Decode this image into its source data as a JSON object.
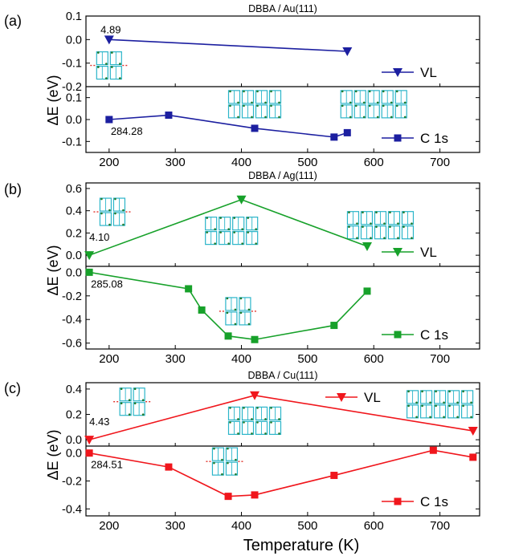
{
  "figure": {
    "x_axis_label": "Temperature (K)",
    "y_axis_label": "ΔE (eV)",
    "x_ticks": [
      200,
      300,
      400,
      500,
      600,
      700
    ]
  },
  "chart_data": [
    {
      "type": "line",
      "panel": "(a)",
      "title": "DBBA / Au(111)",
      "colors": {
        "series": "#1c1fa0",
        "molecule": "#2bb5c9"
      },
      "xlim": [
        165,
        760
      ],
      "subplots": [
        {
          "name": "VL",
          "marker": "triangle-down",
          "ylim": [
            -0.2,
            0.1
          ],
          "y_ticks": [
            "0.1",
            "0.0",
            "-0.1",
            "-0.2"
          ],
          "x": [
            200,
            560
          ],
          "y": [
            0.0,
            -0.05
          ],
          "annotation": "4.89",
          "legend": "VL",
          "legend_position": "right",
          "molecule_insets": [
            {
              "x": 200,
              "y": -0.11,
              "cols": 2,
              "rows": 2,
              "dashes": true
            }
          ]
        },
        {
          "name": "C 1s",
          "marker": "square",
          "ylim": [
            -0.15,
            0.15
          ],
          "y_ticks": [
            "0.1",
            "0.0",
            "-0.1"
          ],
          "x": [
            200,
            290,
            420,
            540,
            560
          ],
          "y": [
            0.0,
            0.02,
            -0.04,
            -0.08,
            -0.06
          ],
          "annotation": "284.28",
          "legend": "C 1s",
          "legend_position": "right",
          "molecule_insets": [
            {
              "x": 420,
              "y": 0.07,
              "cols": 4,
              "rows": 2,
              "dashes": false
            },
            {
              "x": 600,
              "y": 0.07,
              "cols": 5,
              "rows": 2,
              "dashes": false
            }
          ]
        }
      ]
    },
    {
      "type": "line",
      "panel": "(b)",
      "title": "DBBA / Ag(111)",
      "colors": {
        "series": "#17a12a",
        "molecule": "#2bb5c9"
      },
      "xlim": [
        165,
        760
      ],
      "subplots": [
        {
          "name": "VL",
          "marker": "triangle-down",
          "ylim": [
            -0.1,
            0.65
          ],
          "y_ticks": [
            "0.6",
            "0.4",
            "0.2",
            "0.0"
          ],
          "x": [
            170,
            400,
            590
          ],
          "y": [
            0.0,
            0.5,
            0.08
          ],
          "annotation": "4.10",
          "legend": "VL",
          "legend_position": "right",
          "molecule_insets": [
            {
              "x": 205,
              "y": 0.39,
              "cols": 2,
              "rows": 2,
              "dashes": true
            },
            {
              "x": 385,
              "y": 0.22,
              "cols": 4,
              "rows": 2,
              "dashes": false
            },
            {
              "x": 610,
              "y": 0.27,
              "cols": 5,
              "rows": 2,
              "dashes": false
            }
          ]
        },
        {
          "name": "C 1s",
          "marker": "square",
          "ylim": [
            -0.65,
            0.05
          ],
          "y_ticks": [
            "0.0",
            "-0.2",
            "-0.4",
            "-0.6"
          ],
          "x": [
            170,
            320,
            340,
            380,
            420,
            540,
            590
          ],
          "y": [
            0.0,
            -0.14,
            -0.32,
            -0.54,
            -0.57,
            -0.45,
            -0.16
          ],
          "annotation": "285.08",
          "legend": "C 1s",
          "legend_position": "bottom-right",
          "molecule_insets": [
            {
              "x": 395,
              "y": -0.33,
              "cols": 2,
              "rows": 2,
              "dashes": true
            }
          ]
        }
      ]
    },
    {
      "type": "line",
      "panel": "(c)",
      "title": "DBBA / Cu(111)",
      "colors": {
        "series": "#f0161c",
        "molecule": "#2bb5c9"
      },
      "xlim": [
        165,
        760
      ],
      "subplots": [
        {
          "name": "VL",
          "marker": "triangle-down",
          "ylim": [
            -0.05,
            0.45
          ],
          "y_ticks": [
            "0.4",
            "0.2",
            "0.0"
          ],
          "x": [
            170,
            420,
            750
          ],
          "y": [
            0.0,
            0.35,
            0.07
          ],
          "annotation": "4.43",
          "legend": "VL",
          "legend_position": "top-center",
          "molecule_insets": [
            {
              "x": 235,
              "y": 0.3,
              "cols": 2,
              "rows": 2,
              "dashes": true
            },
            {
              "x": 420,
              "y": 0.15,
              "cols": 4,
              "rows": 2,
              "dashes": false
            },
            {
              "x": 700,
              "y": 0.28,
              "cols": 5,
              "rows": 2,
              "dashes": false
            }
          ]
        },
        {
          "name": "C 1s",
          "marker": "square",
          "ylim": [
            -0.45,
            0.05
          ],
          "y_ticks": [
            "0.0",
            "-0.2",
            "-0.4"
          ],
          "x": [
            170,
            290,
            380,
            420,
            540,
            690,
            750
          ],
          "y": [
            0.0,
            -0.1,
            -0.31,
            -0.3,
            -0.16,
            0.02,
            -0.03
          ],
          "annotation": "284.51",
          "legend": "C 1s",
          "legend_position": "bottom-right",
          "molecule_insets": [
            {
              "x": 375,
              "y": -0.06,
              "cols": 2,
              "rows": 2,
              "dashes": true
            }
          ]
        }
      ]
    }
  ]
}
